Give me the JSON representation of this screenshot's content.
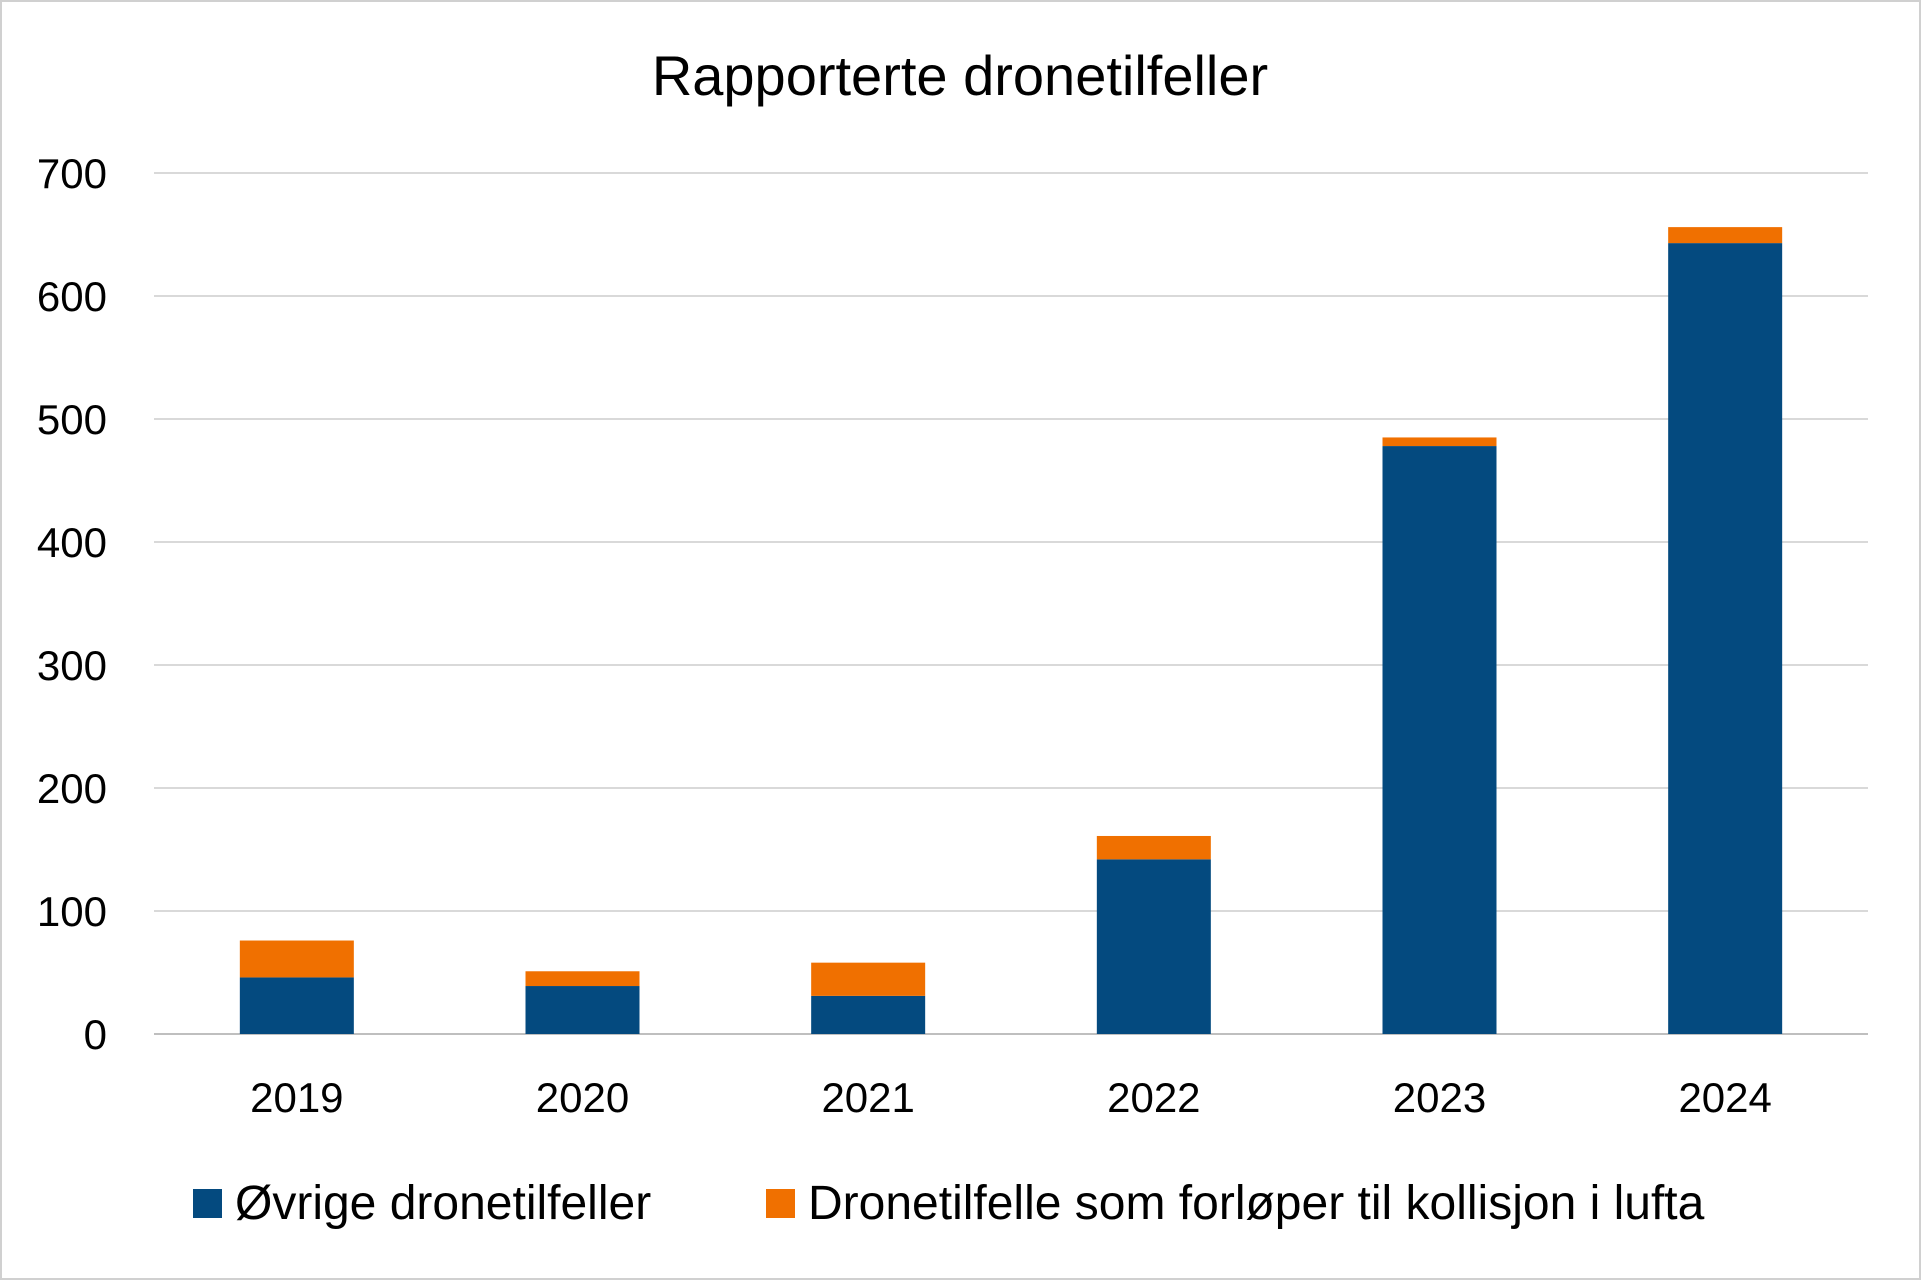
{
  "chart_data": {
    "type": "bar",
    "stacked": true,
    "title": "Rapporterte dronetilfeller",
    "xlabel": "",
    "ylabel": "",
    "categories": [
      "2019",
      "2020",
      "2021",
      "2022",
      "2023",
      "2024"
    ],
    "series": [
      {
        "name": "Øvrige dronetilfeller",
        "color": "#044A7F",
        "values": [
          46,
          39,
          31,
          142,
          478,
          643
        ]
      },
      {
        "name": "Dronetilfelle som forløper til kollisjon i lufta",
        "color": "#F07000",
        "values": [
          30,
          12,
          27,
          19,
          7,
          13
        ]
      }
    ],
    "ylim": [
      0,
      700
    ],
    "yticks": [
      0,
      100,
      200,
      300,
      400,
      500,
      600,
      700
    ],
    "grid": true,
    "legend_position": "bottom"
  }
}
